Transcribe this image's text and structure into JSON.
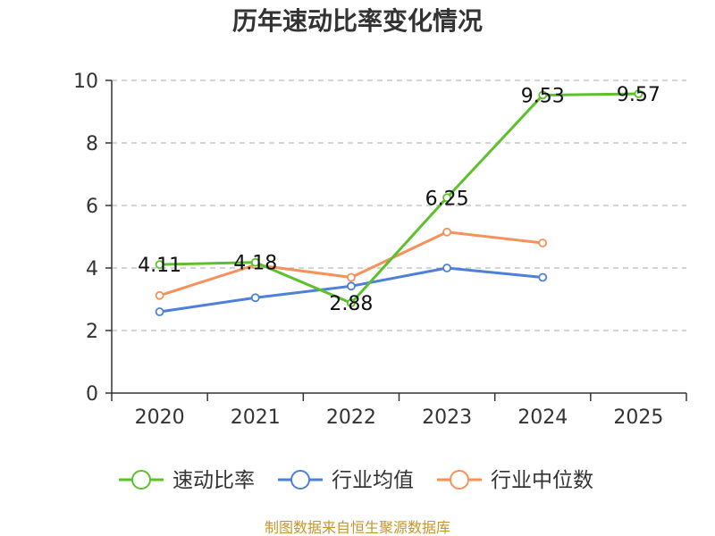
{
  "title": "历年速动比率变化情况",
  "source": "制图数据来自恒生聚源数据库",
  "colors": {
    "grid": "#bbbbbb",
    "axis": "#333333"
  },
  "chart_data": {
    "type": "line",
    "categories": [
      "2020",
      "2021",
      "2022",
      "2023",
      "2024",
      "2025"
    ],
    "ylim": [
      0,
      10
    ],
    "yticks": [
      0,
      2,
      4,
      6,
      8,
      10
    ],
    "grid": true,
    "legend_position": "bottom",
    "series": [
      {
        "name": "速动比率",
        "color": "#5cc12c",
        "values": [
          4.11,
          4.18,
          2.88,
          6.25,
          9.53,
          9.57
        ],
        "labels": [
          "4.11",
          "4.18",
          "2.88",
          "6.25",
          "9.53",
          "9.57"
        ]
      },
      {
        "name": "行业均值",
        "color": "#4e7fd9",
        "values": [
          2.6,
          3.05,
          3.42,
          4.0,
          3.7,
          null
        ]
      },
      {
        "name": "行业中位数",
        "color": "#f4925a",
        "values": [
          3.12,
          4.1,
          3.7,
          5.15,
          4.8,
          null
        ]
      }
    ]
  }
}
